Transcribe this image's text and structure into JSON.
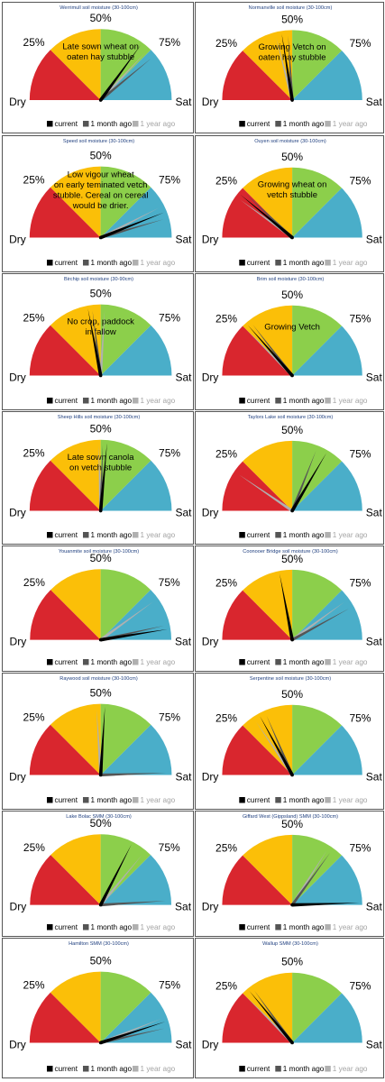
{
  "colors": {
    "dry": "#d9262e",
    "q25": "#fbbf08",
    "q50": "#8ccf4b",
    "sat": "#4aaec9",
    "current": "#000000",
    "month_ago": "#555555",
    "year_ago": "#b0b0b0"
  },
  "labels": {
    "dry": "Dry",
    "p25": "25%",
    "p50": "50%",
    "p75": "75%",
    "sat": "Sat"
  },
  "legend": {
    "current": "current",
    "month_ago": "1 month ago",
    "year_ago": "1 year ago"
  },
  "chart_data": [
    {
      "type": "gauge",
      "title": "Werrimull soil moisture (30-100cm)",
      "annotation": [
        "Late sown wheat on",
        "oaten hay stubble"
      ],
      "scale": [
        0,
        100
      ],
      "needles": {
        "current": 70,
        "month_ago": 78,
        "year_ago": 74
      }
    },
    {
      "type": "gauge",
      "title": "Normanville soil moisture (30-100cm)",
      "annotation": [
        "Growing Vetch on",
        "oaten hay stubble"
      ],
      "scale": [
        0,
        100
      ],
      "needles": {
        "current": 45,
        "month_ago": 48,
        "year_ago": 42
      }
    },
    {
      "type": "gauge",
      "title": "Speed soil moisture (30-100cm)",
      "annotation": [
        "Low vigour wheat",
        "on early teminated vetch",
        "stubble. Cereal on cereal",
        "would be drier."
      ],
      "scale": [
        0,
        100
      ],
      "needles": {
        "current": 88,
        "month_ago": 91,
        "year_ago": 85
      }
    },
    {
      "type": "gauge",
      "title": "Ouyen soil moisture (30-100cm)",
      "annotation": [
        "Growing wheat on",
        "vetch stubble"
      ],
      "scale": [
        0,
        100
      ],
      "needles": {
        "current": 22,
        "month_ago": 24,
        "year_ago": 20
      }
    },
    {
      "type": "gauge",
      "title": "Birchip soil moisture (30-90cm)",
      "annotation": [
        "No crop, paddock",
        "in fallow"
      ],
      "scale": [
        0,
        100
      ],
      "needles": {
        "current": 44,
        "month_ago": 46,
        "year_ago": 52
      }
    },
    {
      "type": "gauge",
      "title": "Brim soil moisture (30-100cm)",
      "annotation": [
        "Growing Vetch"
      ],
      "scale": [
        0,
        100
      ],
      "needles": {
        "current": 27,
        "month_ago": 29,
        "year_ago": 25
      }
    },
    {
      "type": "gauge",
      "title": "Sheep Hills soil moisture (30-100cm)",
      "annotation": [
        "Late sown canola",
        "on vetch stubble"
      ],
      "scale": [
        0,
        100
      ],
      "needles": {
        "current": 53,
        "month_ago": 51,
        "year_ago": 49
      }
    },
    {
      "type": "gauge",
      "title": "Taylors Lake soil moisture (30-100cm)",
      "annotation": [],
      "scale": [
        0,
        100
      ],
      "needles": {
        "current": 67,
        "month_ago": 62,
        "year_ago": 19
      }
    },
    {
      "type": "gauge",
      "title": "Youanmite soil moisture (30-100cm)",
      "annotation": [],
      "scale": [
        0,
        100
      ],
      "needles": {
        "current": 95,
        "month_ago": 93,
        "year_ago": 80
      }
    },
    {
      "type": "gauge",
      "title": "Coonooer Bridge soil moisture (30-100cm)",
      "annotation": [],
      "scale": [
        0,
        100
      ],
      "needles": {
        "current": 44,
        "month_ago": 84,
        "year_ago": 80
      }
    },
    {
      "type": "gauge",
      "title": "Raywood soil moisture (30-100cm)",
      "annotation": [],
      "scale": [
        0,
        100
      ],
      "needles": {
        "current": 52,
        "month_ago": 99,
        "year_ago": 48
      }
    },
    {
      "type": "gauge",
      "title": "Serpentine soil moisture (30-100cm)",
      "annotation": [],
      "scale": [
        0,
        100
      ],
      "needles": {
        "current": 34,
        "month_ago": 37,
        "year_ago": 31
      }
    },
    {
      "type": "gauge",
      "title": "Lake Bolac SMM (30-100cm)",
      "annotation": [],
      "scale": [
        0,
        100
      ],
      "needles": {
        "current": 65,
        "month_ago": 98,
        "year_ago": 72
      }
    },
    {
      "type": "gauge",
      "title": "Giffard West (Gippsland) SMM (30-100cm)",
      "annotation": [],
      "scale": [
        0,
        100
      ],
      "needles": {
        "current": 99,
        "month_ago": 70,
        "year_ago": 68
      }
    },
    {
      "type": "gauge",
      "title": "Hamilton SMM (30-100cm)",
      "annotation": [],
      "scale": [
        0,
        100
      ],
      "needles": {
        "current": 90,
        "month_ago": 93,
        "year_ago": 88
      }
    },
    {
      "type": "gauge",
      "title": "Wallup SMM (30-100cm)",
      "annotation": [],
      "scale": [
        0,
        100
      ],
      "needles": {
        "current": 28,
        "month_ago": 30,
        "year_ago": 25
      }
    }
  ]
}
